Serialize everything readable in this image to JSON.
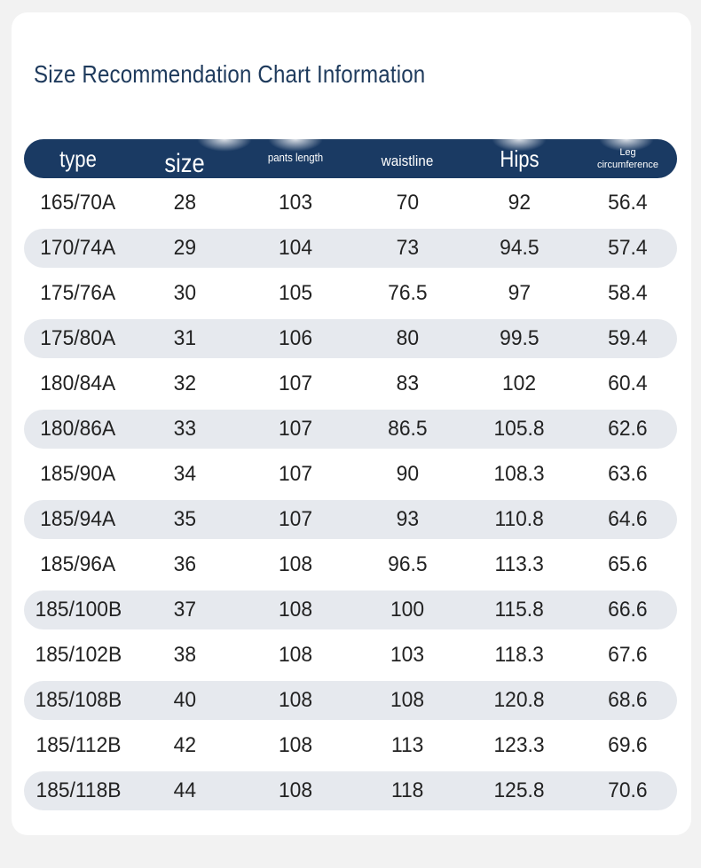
{
  "title": "Size Recommendation Chart Information",
  "headers": {
    "type": "type",
    "size": "size",
    "pants_length": "pants length",
    "waistline": "waistline",
    "hips": "Hips",
    "leg_line1": "Leg",
    "leg_line2": "circumference"
  },
  "rows": [
    {
      "type": "165/70A",
      "size": "28",
      "pants_length": "103",
      "waistline": "70",
      "hips": "92",
      "leg": "56.4"
    },
    {
      "type": "170/74A",
      "size": "29",
      "pants_length": "104",
      "waistline": "73",
      "hips": "94.5",
      "leg": "57.4"
    },
    {
      "type": "175/76A",
      "size": "30",
      "pants_length": "105",
      "waistline": "76.5",
      "hips": "97",
      "leg": "58.4"
    },
    {
      "type": "175/80A",
      "size": "31",
      "pants_length": "106",
      "waistline": "80",
      "hips": "99.5",
      "leg": "59.4"
    },
    {
      "type": "180/84A",
      "size": "32",
      "pants_length": "107",
      "waistline": "83",
      "hips": "102",
      "leg": "60.4"
    },
    {
      "type": "180/86A",
      "size": "33",
      "pants_length": "107",
      "waistline": "86.5",
      "hips": "105.8",
      "leg": "62.6"
    },
    {
      "type": "185/90A",
      "size": "34",
      "pants_length": "107",
      "waistline": "90",
      "hips": "108.3",
      "leg": "63.6"
    },
    {
      "type": "185/94A",
      "size": "35",
      "pants_length": "107",
      "waistline": "93",
      "hips": "110.8",
      "leg": "64.6"
    },
    {
      "type": "185/96A",
      "size": "36",
      "pants_length": "108",
      "waistline": "96.5",
      "hips": "113.3",
      "leg": "65.6"
    },
    {
      "type": "185/100B",
      "size": "37",
      "pants_length": "108",
      "waistline": "100",
      "hips": "115.8",
      "leg": "66.6"
    },
    {
      "type": "185/102B",
      "size": "38",
      "pants_length": "108",
      "waistline": "103",
      "hips": "118.3",
      "leg": "67.6"
    },
    {
      "type": "185/108B",
      "size": "40",
      "pants_length": "108",
      "waistline": "108",
      "hips": "120.8",
      "leg": "68.6"
    },
    {
      "type": "185/112B",
      "size": "42",
      "pants_length": "108",
      "waistline": "113",
      "hips": "123.3",
      "leg": "69.6"
    },
    {
      "type": "185/118B",
      "size": "44",
      "pants_length": "108",
      "waistline": "118",
      "hips": "125.8",
      "leg": "70.6"
    }
  ]
}
